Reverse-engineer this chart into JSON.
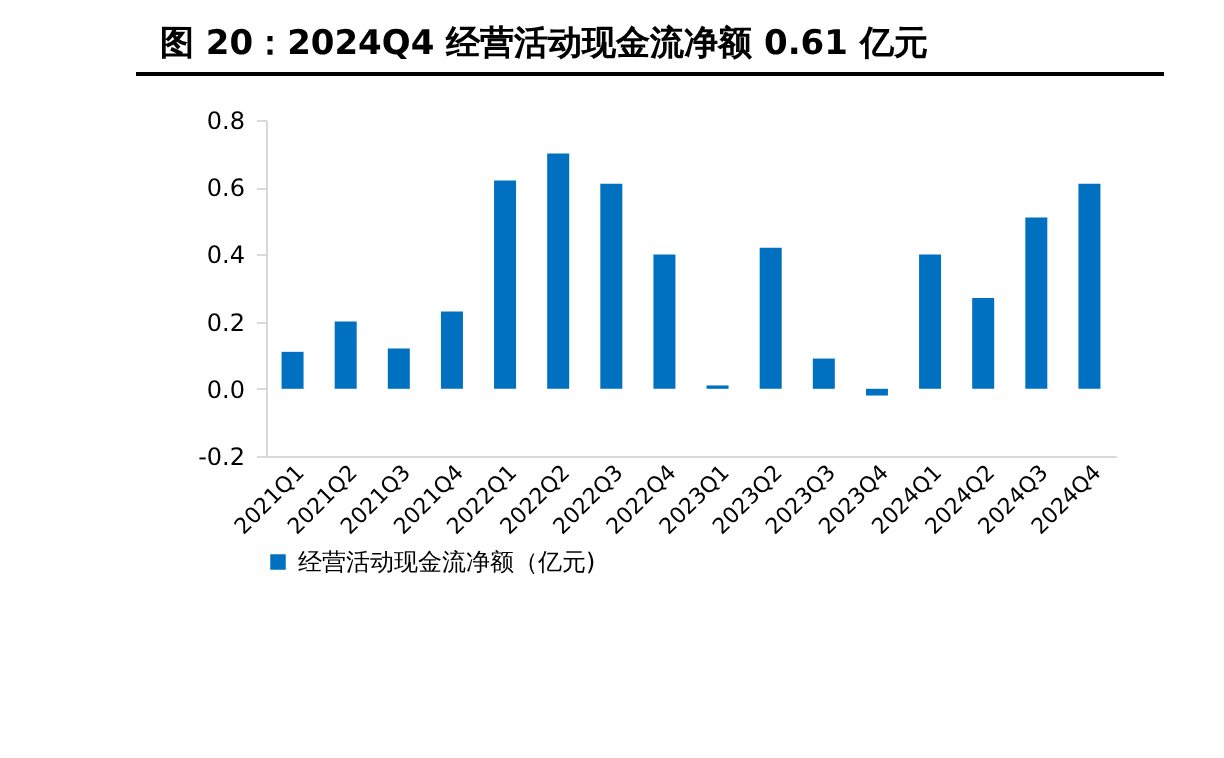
{
  "chart_data": {
    "type": "bar",
    "title": "图 20：2024Q4 经营活动现金流净额 0.61 亿元",
    "categories": [
      "2021Q1",
      "2021Q2",
      "2021Q3",
      "2021Q4",
      "2022Q1",
      "2022Q2",
      "2022Q3",
      "2022Q4",
      "2023Q1",
      "2023Q2",
      "2023Q3",
      "2023Q4",
      "2024Q1",
      "2024Q2",
      "2024Q3",
      "2024Q4"
    ],
    "series": [
      {
        "name": "经营活动现金流净额（亿元)",
        "color": "#0070c0",
        "values": [
          0.11,
          0.2,
          0.12,
          0.23,
          0.62,
          0.7,
          0.61,
          0.4,
          0.01,
          0.42,
          0.09,
          -0.02,
          0.4,
          0.27,
          0.51,
          0.61
        ]
      }
    ],
    "ylim": [
      -0.2,
      0.8
    ],
    "yticks": [
      -0.2,
      {
        "value": 0,
        "label": "0.0"
      },
      0.2,
      0.4,
      0.6,
      0.8
    ],
    "grid": false,
    "legend": "bottom"
  }
}
